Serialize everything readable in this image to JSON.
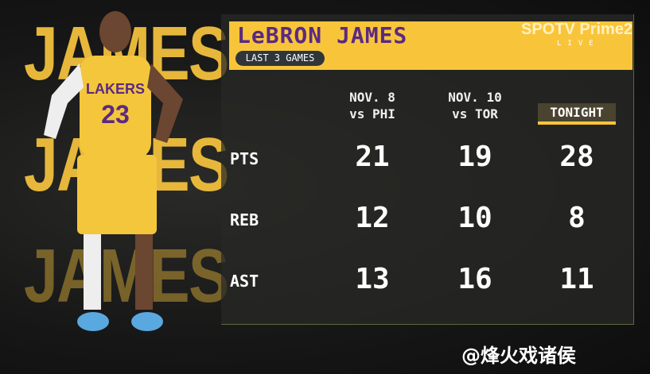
{
  "header": {
    "name": "LeBRON JAMES",
    "badge": "LAST 3 GAMES"
  },
  "broadcaster": {
    "logo": "SPOTV Prime2",
    "live": "LIVE"
  },
  "background_text": "JAMES",
  "columns": [
    {
      "date": "NOV. 8",
      "opponent": "vs PHI"
    },
    {
      "date": "NOV. 10",
      "opponent": "vs TOR"
    },
    {
      "label": "TONIGHT"
    }
  ],
  "rows": [
    {
      "stat": "PTS",
      "values": [
        "21",
        "19",
        "28"
      ]
    },
    {
      "stat": "REB",
      "values": [
        "12",
        "10",
        "8"
      ]
    },
    {
      "stat": "AST",
      "values": [
        "13",
        "16",
        "11"
      ]
    }
  ],
  "jersey": {
    "team": "LAKERS",
    "number": "23"
  },
  "watermark": "@烽火戏诸侯",
  "colors": {
    "gold": "#f8c53a",
    "purple": "#5a2a82"
  }
}
